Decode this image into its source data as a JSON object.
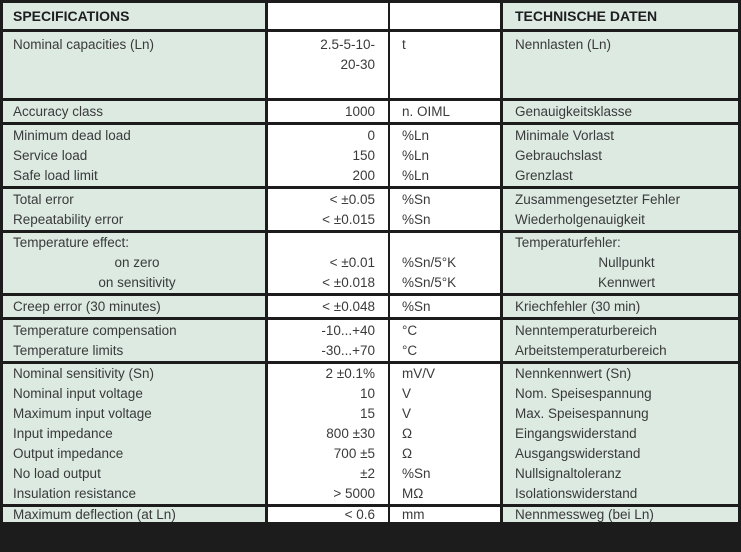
{
  "colors": {
    "row_background": "#dceae2",
    "value_background": "#ffffff",
    "border": "#1c1c1c",
    "text": "#3a3a3a"
  },
  "table": {
    "header": {
      "left": "SPECIFICATIONS",
      "right": "TECHNISCHE DATEN"
    },
    "rows": [
      {
        "en": [
          "Nominal capacities (Ln)"
        ],
        "value": [
          "2.5-5-10-",
          "20-30"
        ],
        "unit": [
          "t"
        ],
        "de": [
          "Nennlasten (Ln)"
        ]
      },
      {
        "en": [
          "Accuracy class"
        ],
        "value": [
          "1000"
        ],
        "unit": [
          "n. OIML"
        ],
        "de": [
          "Genauigkeitsklasse"
        ]
      },
      {
        "en": [
          "Minimum dead load",
          "Service load",
          "Safe load limit"
        ],
        "value": [
          "0",
          "150",
          "200"
        ],
        "unit": [
          "%Ln",
          "%Ln",
          "%Ln"
        ],
        "de": [
          "Minimale Vorlast",
          "Gebrauchslast",
          "Grenzlast"
        ]
      },
      {
        "en": [
          "Total error",
          "Repeatability error"
        ],
        "value": [
          "< ±0.05",
          "< ±0.015"
        ],
        "unit": [
          "%Sn",
          "%Sn"
        ],
        "de": [
          "Zusammengesetzter Fehler",
          "Wiederholgenauigkeit"
        ]
      },
      {
        "en": [
          "Temperature effect:",
          {
            "text": "on zero",
            "align": "center"
          },
          {
            "text": "on sensitivity",
            "align": "center"
          }
        ],
        "value": [
          "",
          "< ±0.01",
          "< ±0.018"
        ],
        "unit": [
          "",
          "%Sn/5°K",
          "%Sn/5°K"
        ],
        "de": [
          "Temperaturfehler:",
          {
            "text": "Nullpunkt",
            "align": "center"
          },
          {
            "text": "Kennwert",
            "align": "center"
          }
        ]
      },
      {
        "en": [
          "Creep error (30 minutes)"
        ],
        "value": [
          "< ±0.048"
        ],
        "unit": [
          "%Sn"
        ],
        "de": [
          "Kriechfehler (30 min)"
        ]
      },
      {
        "en": [
          "Temperature compensation",
          "Temperature limits"
        ],
        "value": [
          "-10...+40",
          "-30...+70"
        ],
        "unit": [
          "°C",
          "°C"
        ],
        "de": [
          "Nenntemperaturbereich",
          "Arbeitstemperaturbereich"
        ]
      },
      {
        "en": [
          "Nominal sensitivity (Sn)",
          "Nominal input voltage",
          "Maximum input voltage",
          "Input impedance",
          "Output impedance",
          "No load output",
          "Insulation resistance"
        ],
        "value": [
          "2 ±0.1%",
          "10",
          "15",
          "800 ±30",
          "700 ±5",
          "±2",
          "> 5000"
        ],
        "unit": [
          "mV/V",
          "V",
          "V",
          "Ω",
          "Ω",
          "%Sn",
          "MΩ"
        ],
        "de": [
          "Nennkennwert (Sn)",
          "Nom. Speisespannung",
          "Max. Speisespannung",
          "Eingangswiderstand",
          "Ausgangswiderstand",
          "Nullsignaltoleranz",
          "Isolationswiderstand"
        ]
      },
      {
        "en": [
          "Maximum deflection (at Ln)"
        ],
        "value": [
          "< 0.6"
        ],
        "unit": [
          "mm"
        ],
        "de": [
          "Nennmessweg (bei Ln)"
        ]
      }
    ]
  }
}
